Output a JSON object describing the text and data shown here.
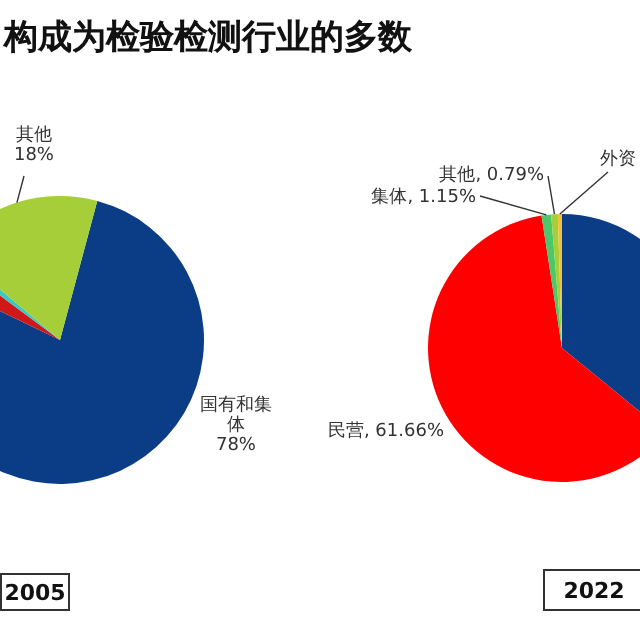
{
  "chart_data": [
    {
      "type": "pie",
      "title": "构成为检验检测行业的多数",
      "annotations": [
        "2005"
      ],
      "categories": [
        "国有和集体",
        null,
        null,
        "其他"
      ],
      "values": [
        78,
        3,
        1,
        18
      ],
      "value_labels": [
        "78%",
        null,
        null,
        "18%"
      ],
      "colors": [
        "#0a3d86",
        "#d01818",
        "#3cc8c0",
        "#a6ce39"
      ]
    },
    {
      "type": "pie",
      "annotations": [
        "2022"
      ],
      "categories": [
        null,
        "民营",
        "集体",
        "其他",
        "外资"
      ],
      "values": [
        35.9,
        61.66,
        1.15,
        0.79,
        0.5
      ],
      "value_labels": [
        null,
        "61.66%",
        "1.15%",
        "0.79%",
        null
      ],
      "colors": [
        "#0a3d86",
        "#ff0000",
        "#4cc86a",
        "#a6ce39",
        "#f2c03c"
      ]
    }
  ]
}
